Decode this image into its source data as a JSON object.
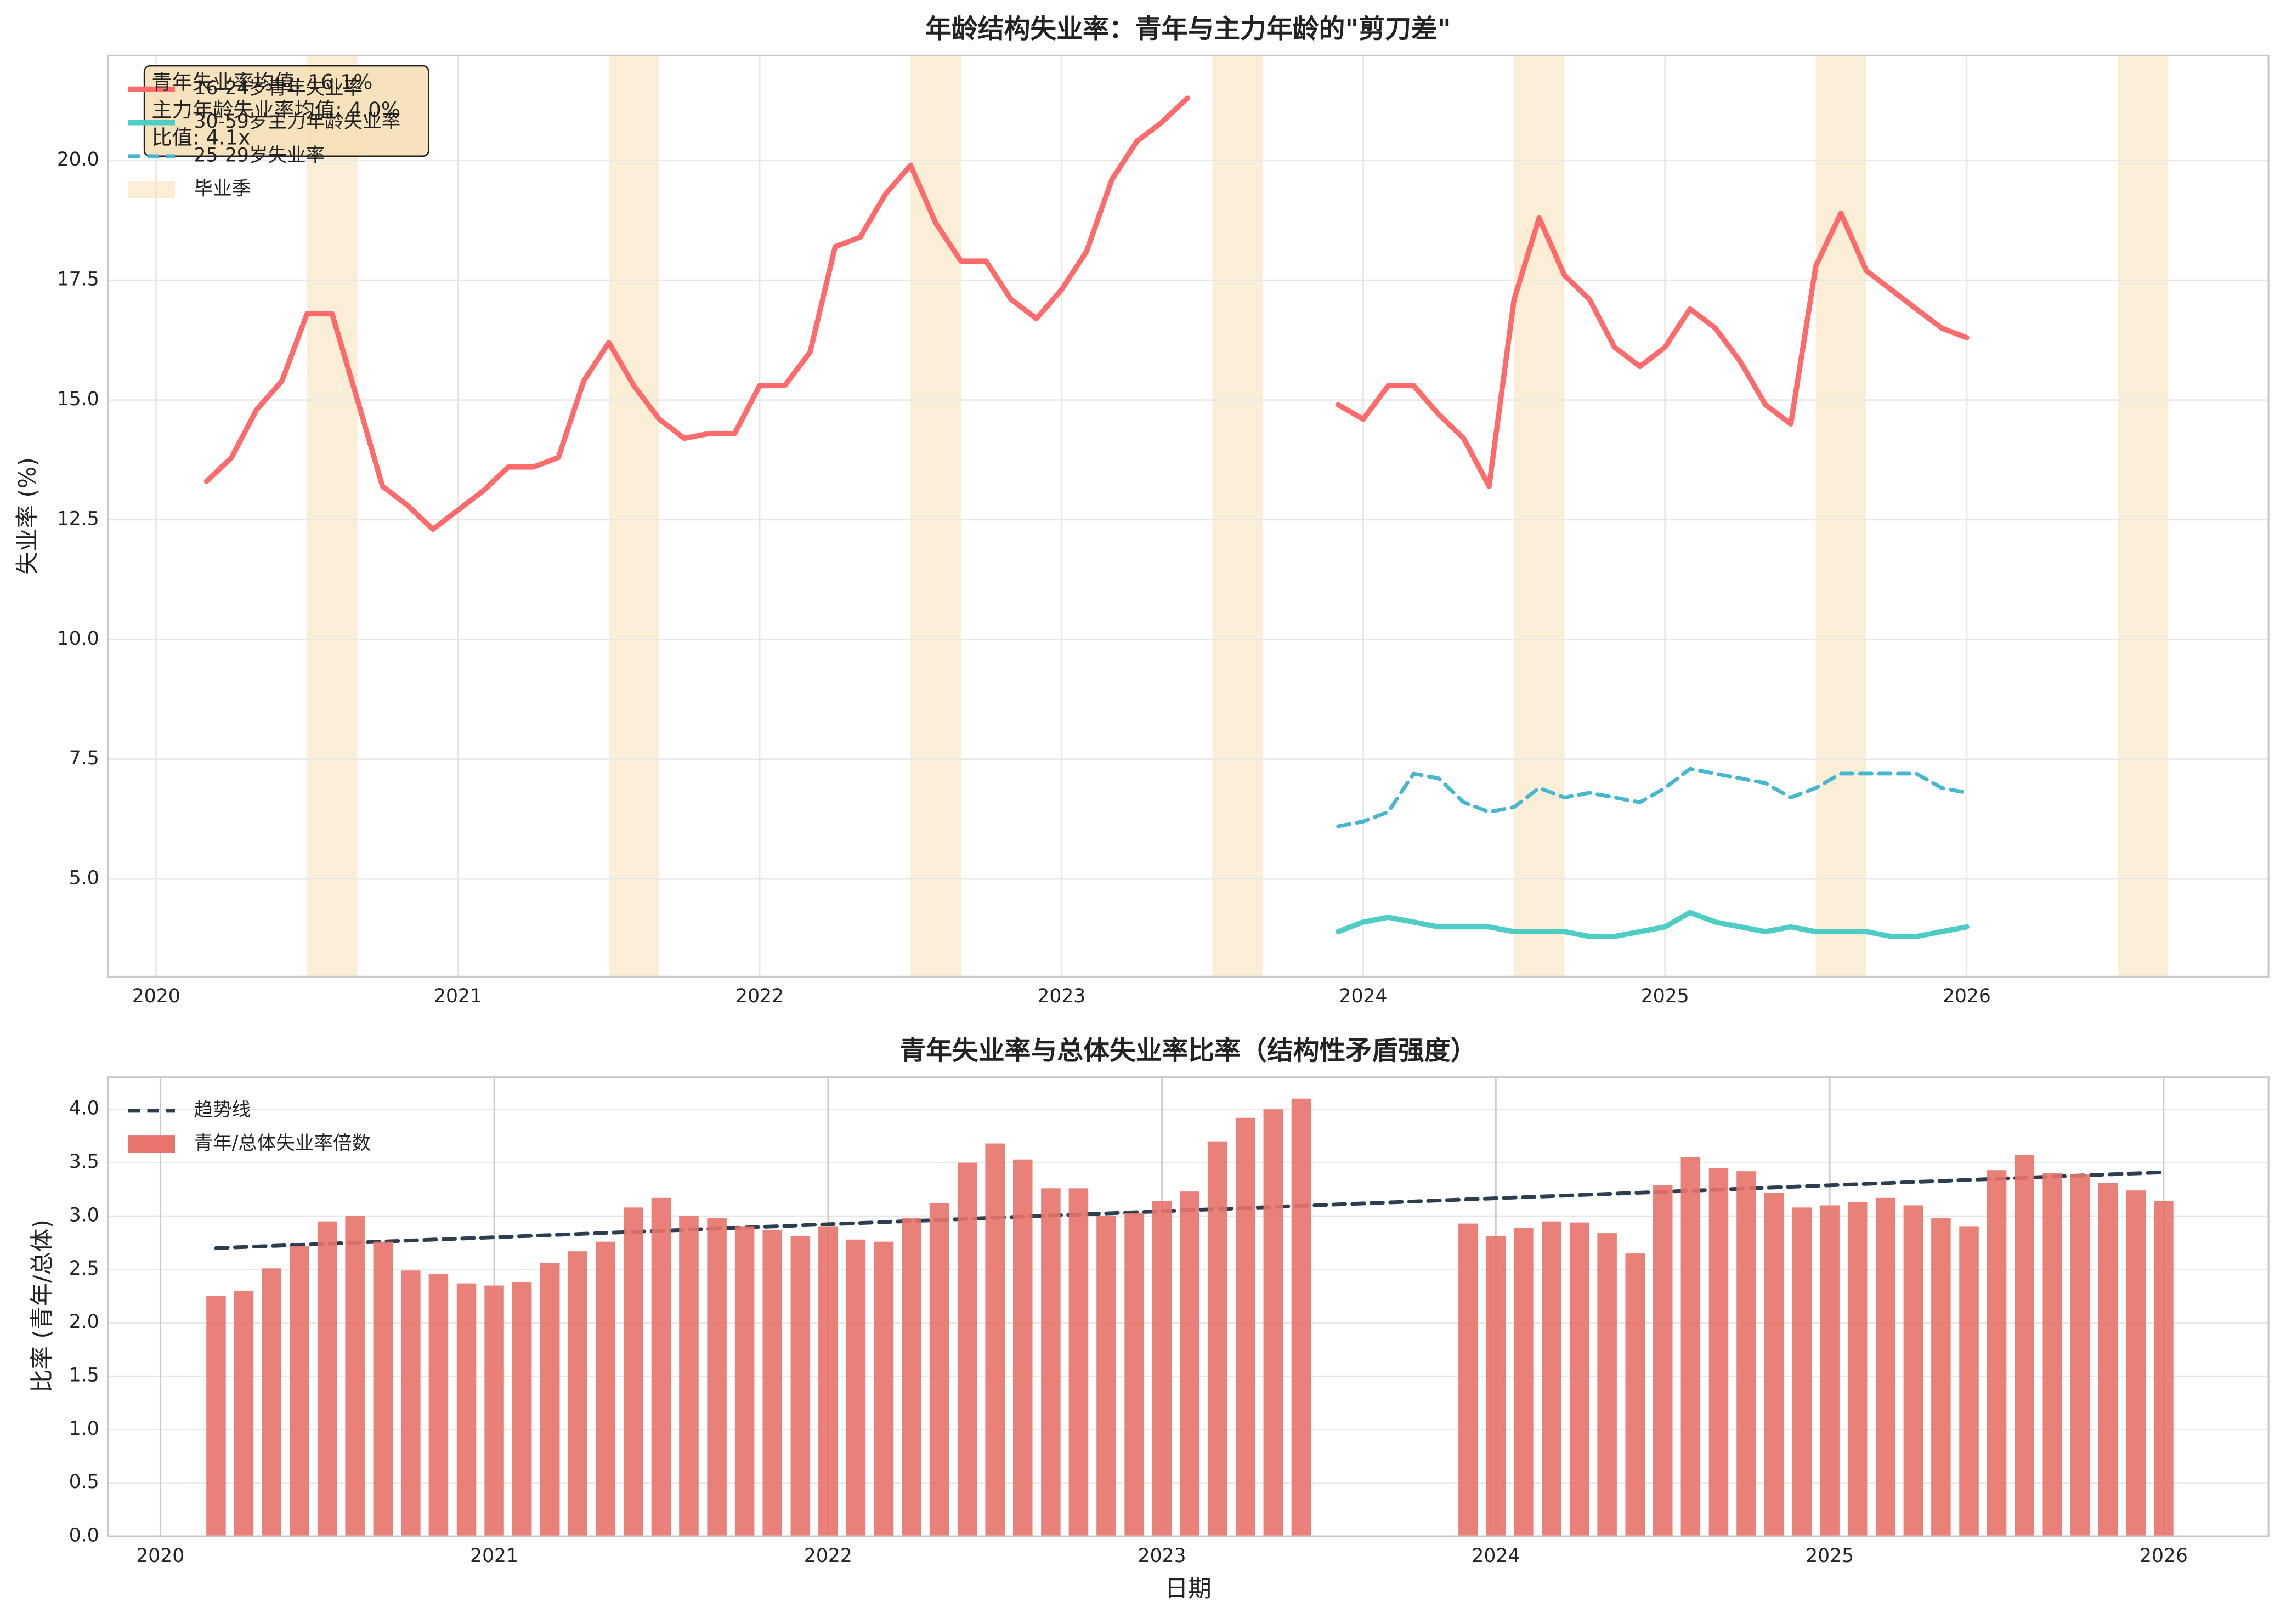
{
  "chart_data": [
    {
      "type": "line",
      "title": "年龄结构失业率：青年与主力年龄的\"剪刀差\"",
      "y_label": "失业率 (%)",
      "x": [
        2020.167,
        2020.25,
        2020.333,
        2020.417,
        2020.5,
        2020.583,
        2020.667,
        2020.75,
        2020.833,
        2020.917,
        2021.0,
        2021.083,
        2021.167,
        2021.25,
        2021.333,
        2021.417,
        2021.5,
        2021.583,
        2021.667,
        2021.75,
        2021.833,
        2021.917,
        2022.0,
        2022.083,
        2022.167,
        2022.25,
        2022.333,
        2022.417,
        2022.5,
        2022.583,
        2022.667,
        2022.75,
        2022.833,
        2022.917,
        2023.0,
        2023.083,
        2023.167,
        2023.25,
        2023.333,
        2023.417,
        2023.5,
        2023.583,
        2023.667,
        2023.75,
        2023.833,
        2023.917,
        2024.0,
        2024.083,
        2024.167,
        2024.25,
        2024.333,
        2024.417,
        2024.5,
        2024.583,
        2024.667,
        2024.75,
        2024.833,
        2024.917,
        2025.0,
        2025.083,
        2025.167,
        2025.25,
        2025.333,
        2025.417,
        2025.5,
        2025.583,
        2025.667,
        2025.75,
        2025.833,
        2025.917,
        2026.0
      ],
      "series": [
        {
          "name": "16-24岁青年失业率",
          "color": "#ff6b6b",
          "dashed": false,
          "values": [
            13.3,
            13.8,
            14.8,
            15.4,
            16.8,
            16.8,
            15.0,
            13.2,
            12.8,
            12.3,
            12.7,
            13.1,
            13.6,
            13.6,
            13.8,
            15.4,
            16.2,
            15.3,
            14.6,
            14.2,
            14.3,
            14.3,
            15.3,
            15.3,
            16.0,
            18.2,
            18.4,
            19.3,
            19.9,
            18.7,
            17.9,
            17.9,
            17.1,
            16.7,
            17.3,
            18.1,
            19.6,
            20.4,
            20.8,
            21.3,
            null,
            null,
            null,
            null,
            null,
            14.9,
            14.6,
            15.3,
            15.3,
            14.7,
            14.2,
            13.2,
            17.1,
            18.8,
            17.6,
            17.1,
            16.1,
            15.7,
            16.1,
            16.9,
            16.5,
            15.8,
            14.9,
            14.5,
            17.8,
            18.9,
            17.7,
            17.3,
            16.9,
            16.5,
            16.3
          ]
        },
        {
          "name": "30-59岁主力年龄失业率",
          "color": "#4ecdc4",
          "dashed": false,
          "values": [
            null,
            null,
            null,
            null,
            null,
            null,
            null,
            null,
            null,
            null,
            null,
            null,
            null,
            null,
            null,
            null,
            null,
            null,
            null,
            null,
            null,
            null,
            null,
            null,
            null,
            null,
            null,
            null,
            null,
            null,
            null,
            null,
            null,
            null,
            null,
            null,
            null,
            null,
            null,
            null,
            null,
            null,
            null,
            null,
            null,
            3.9,
            4.1,
            4.2,
            4.1,
            4.0,
            4.0,
            4.0,
            3.9,
            3.9,
            3.9,
            3.8,
            3.8,
            3.9,
            4.0,
            4.3,
            4.1,
            4.0,
            3.9,
            4.0,
            3.9,
            3.9,
            3.9,
            3.8,
            3.8,
            3.9,
            4.0
          ]
        },
        {
          "name": "25-29岁失业率",
          "color": "#45b7d1",
          "dashed": true,
          "values": [
            null,
            null,
            null,
            null,
            null,
            null,
            null,
            null,
            null,
            null,
            null,
            null,
            null,
            null,
            null,
            null,
            null,
            null,
            null,
            null,
            null,
            null,
            null,
            null,
            null,
            null,
            null,
            null,
            null,
            null,
            null,
            null,
            null,
            null,
            null,
            null,
            null,
            null,
            null,
            null,
            null,
            null,
            null,
            null,
            null,
            6.1,
            6.2,
            6.4,
            7.2,
            7.1,
            6.6,
            6.4,
            6.5,
            6.9,
            6.7,
            6.8,
            6.7,
            6.6,
            6.9,
            7.3,
            7.2,
            7.1,
            7.0,
            6.7,
            6.9,
            7.2,
            7.2,
            7.2,
            7.2,
            6.9,
            6.8
          ]
        }
      ],
      "shaded_regions": {
        "name": "毕业季",
        "color": "#f9e3bd",
        "spans": [
          [
            2020.5,
            2020.667
          ],
          [
            2021.5,
            2021.667
          ],
          [
            2022.5,
            2022.667
          ],
          [
            2023.5,
            2023.667
          ],
          [
            2024.5,
            2024.667
          ],
          [
            2025.5,
            2025.667
          ],
          [
            2026.5,
            2026.667
          ]
        ]
      },
      "annotation": [
        "青年失业率均值: 16.1%",
        "主力年龄失业率均值: 4.0%",
        "比值: 4.1x"
      ],
      "xlim": [
        2019.84,
        2027.0
      ],
      "ylim": [
        2.96,
        22.19
      ],
      "xticks": [
        2020,
        2021,
        2022,
        2023,
        2024,
        2025,
        2026
      ],
      "yticks": [
        {
          "value": 5,
          "label": "5.0"
        },
        {
          "value": 7.5,
          "label": "7.5"
        },
        {
          "value": 10,
          "label": "10.0"
        },
        {
          "value": 12.5,
          "label": "12.5"
        },
        {
          "value": 15,
          "label": "15.0"
        },
        {
          "value": 17.5,
          "label": "17.5"
        },
        {
          "value": 20,
          "label": "20.0"
        }
      ],
      "grid": true,
      "legend": "upper left"
    },
    {
      "type": "bar",
      "title": "青年失业率与总体失业率比率（结构性矛盾强度）",
      "x_label": "日期",
      "y_label": "比率 (青年/总体)",
      "x": [
        2020.167,
        2020.25,
        2020.333,
        2020.417,
        2020.5,
        2020.583,
        2020.667,
        2020.75,
        2020.833,
        2020.917,
        2021.0,
        2021.083,
        2021.167,
        2021.25,
        2021.333,
        2021.417,
        2021.5,
        2021.583,
        2021.667,
        2021.75,
        2021.833,
        2021.917,
        2022.0,
        2022.083,
        2022.167,
        2022.25,
        2022.333,
        2022.417,
        2022.5,
        2022.583,
        2022.667,
        2022.75,
        2022.833,
        2022.917,
        2023.0,
        2023.083,
        2023.167,
        2023.25,
        2023.333,
        2023.417,
        2023.5,
        2023.583,
        2023.667,
        2023.75,
        2023.833,
        2023.917,
        2024.0,
        2024.083,
        2024.167,
        2024.25,
        2024.333,
        2024.417,
        2024.5,
        2024.583,
        2024.667,
        2024.75,
        2024.833,
        2024.917,
        2025.0,
        2025.083,
        2025.167,
        2025.25,
        2025.333,
        2025.417,
        2025.5,
        2025.583,
        2025.667,
        2025.75,
        2025.833,
        2025.917,
        2026.0
      ],
      "series": [
        {
          "name": "趋势线",
          "type": "line",
          "color": "#2c3e50",
          "dashed": true,
          "x": [
            2020.167,
            2026.0
          ],
          "values": [
            2.7,
            3.41
          ]
        },
        {
          "name": "青年/总体失业率倍数",
          "type": "bar",
          "color": "#e8736a",
          "values": [
            2.25,
            2.3,
            2.51,
            2.72,
            2.95,
            3.0,
            2.76,
            2.49,
            2.46,
            2.37,
            2.35,
            2.38,
            2.56,
            2.67,
            2.76,
            3.08,
            3.17,
            3.0,
            2.98,
            2.9,
            2.87,
            2.81,
            2.9,
            2.78,
            2.76,
            2.98,
            3.12,
            3.5,
            3.68,
            3.53,
            3.26,
            3.26,
            3.0,
            3.03,
            3.14,
            3.23,
            3.7,
            3.92,
            4.0,
            4.1,
            null,
            null,
            null,
            null,
            null,
            2.93,
            2.81,
            2.89,
            2.95,
            2.94,
            2.84,
            2.65,
            3.29,
            3.55,
            3.45,
            3.42,
            3.22,
            3.08,
            3.1,
            3.13,
            3.17,
            3.1,
            2.98,
            2.9,
            3.43,
            3.57,
            3.4,
            3.39,
            3.31,
            3.24,
            3.14
          ]
        }
      ],
      "xlim": [
        2019.843,
        2026.314
      ],
      "ylim": [
        0,
        4.3
      ],
      "xticks": [
        2020,
        2021,
        2022,
        2023,
        2024,
        2025,
        2026
      ],
      "yticks": [
        {
          "value": 0,
          "label": "0.0"
        },
        {
          "value": 0.5,
          "label": "0.5"
        },
        {
          "value": 1,
          "label": "1.0"
        },
        {
          "value": 1.5,
          "label": "1.5"
        },
        {
          "value": 2,
          "label": "2.0"
        },
        {
          "value": 2.5,
          "label": "2.5"
        },
        {
          "value": 3,
          "label": "3.0"
        },
        {
          "value": 3.5,
          "label": "3.5"
        },
        {
          "value": 4,
          "label": "4.0"
        }
      ],
      "grid": true,
      "legend": "upper left"
    }
  ]
}
